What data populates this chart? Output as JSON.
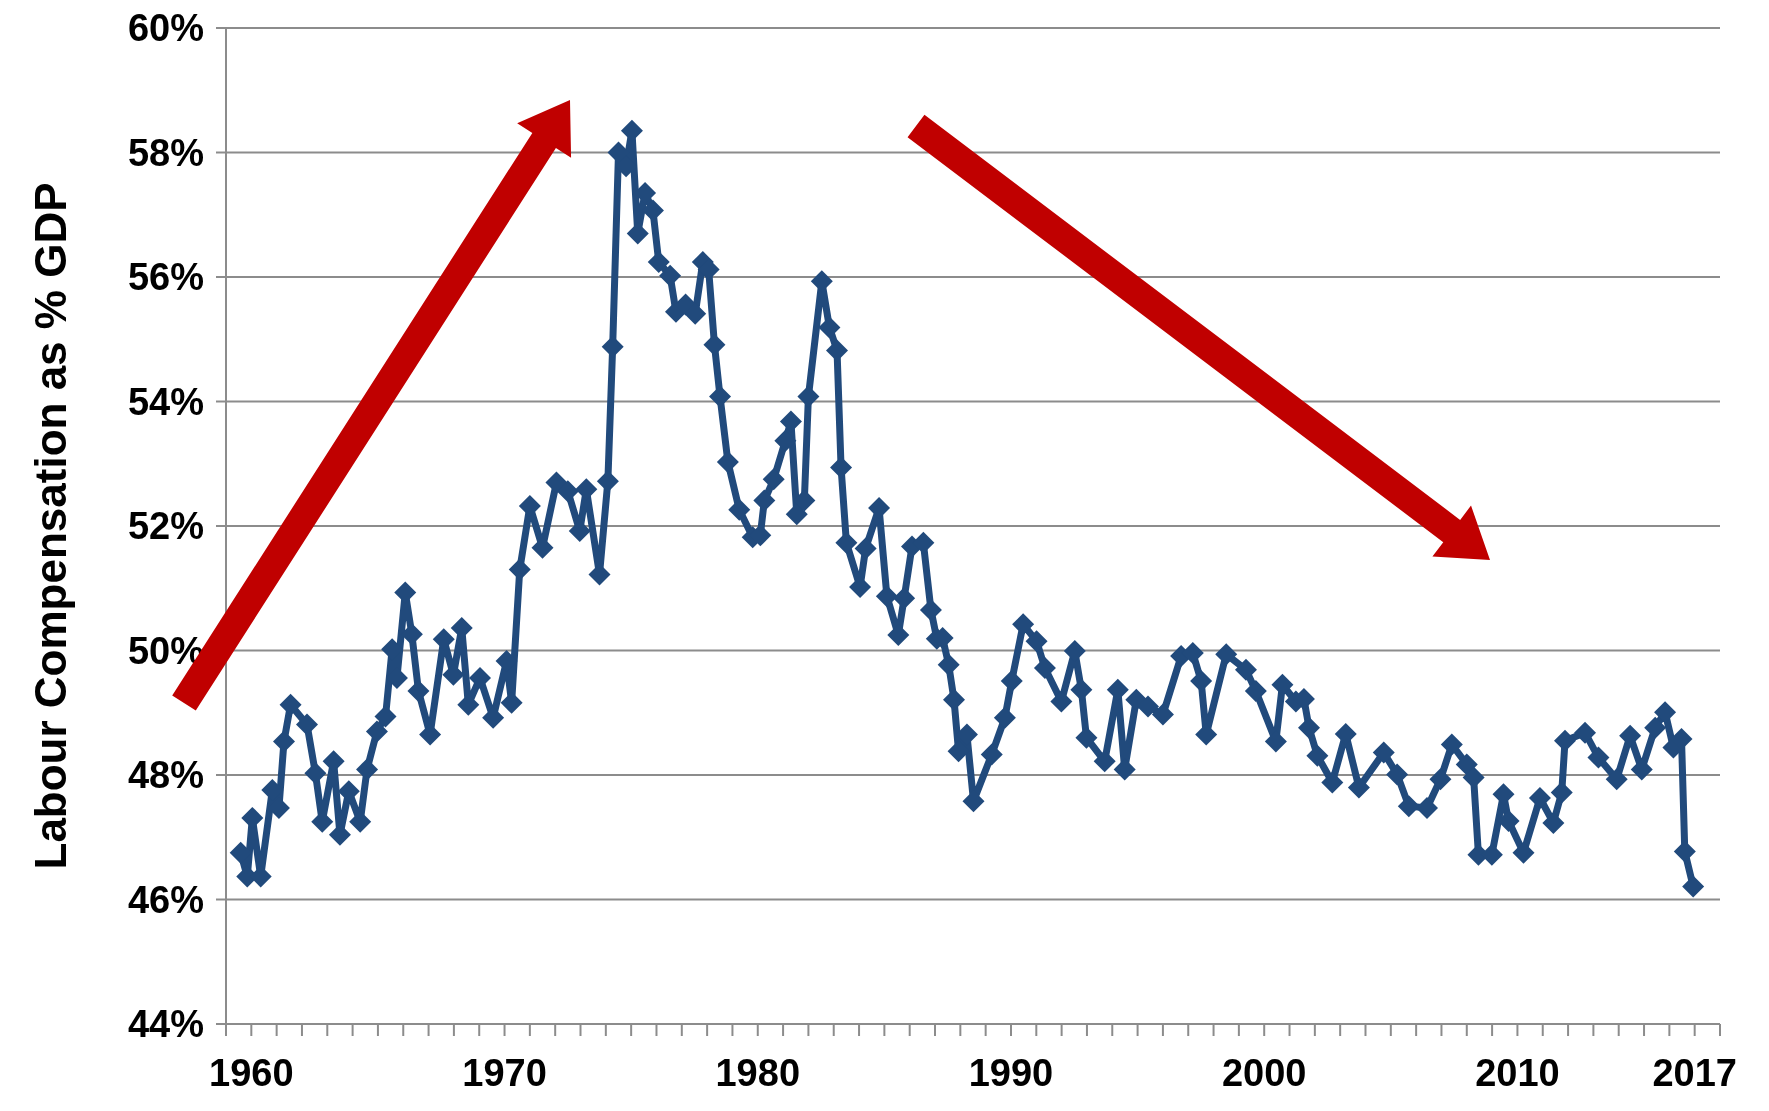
{
  "chart_data": {
    "type": "line",
    "ylabel": "Labour Compensation as % GDP",
    "xlim": [
      1959,
      2018
    ],
    "xticks": [
      {
        "value": 1959,
        "label": null
      },
      {
        "value": 1960,
        "label": "1960"
      },
      {
        "value": 1961,
        "label": null
      },
      {
        "value": 1962,
        "label": null
      },
      {
        "value": 1963,
        "label": null
      },
      {
        "value": 1964,
        "label": null
      },
      {
        "value": 1965,
        "label": null
      },
      {
        "value": 1966,
        "label": null
      },
      {
        "value": 1967,
        "label": null
      },
      {
        "value": 1968,
        "label": null
      },
      {
        "value": 1969,
        "label": null
      },
      {
        "value": 1970,
        "label": "1970"
      },
      {
        "value": 1971,
        "label": null
      },
      {
        "value": 1972,
        "label": null
      },
      {
        "value": 1973,
        "label": null
      },
      {
        "value": 1974,
        "label": null
      },
      {
        "value": 1975,
        "label": null
      },
      {
        "value": 1976,
        "label": null
      },
      {
        "value": 1977,
        "label": null
      },
      {
        "value": 1978,
        "label": null
      },
      {
        "value": 1979,
        "label": null
      },
      {
        "value": 1980,
        "label": "1980"
      },
      {
        "value": 1981,
        "label": null
      },
      {
        "value": 1982,
        "label": null
      },
      {
        "value": 1983,
        "label": null
      },
      {
        "value": 1984,
        "label": null
      },
      {
        "value": 1985,
        "label": null
      },
      {
        "value": 1986,
        "label": null
      },
      {
        "value": 1987,
        "label": null
      },
      {
        "value": 1988,
        "label": null
      },
      {
        "value": 1989,
        "label": null
      },
      {
        "value": 1990,
        "label": "1990"
      },
      {
        "value": 1991,
        "label": null
      },
      {
        "value": 1992,
        "label": null
      },
      {
        "value": 1993,
        "label": null
      },
      {
        "value": 1994,
        "label": null
      },
      {
        "value": 1995,
        "label": null
      },
      {
        "value": 1996,
        "label": null
      },
      {
        "value": 1997,
        "label": null
      },
      {
        "value": 1998,
        "label": null
      },
      {
        "value": 1999,
        "label": null
      },
      {
        "value": 2000,
        "label": "2000"
      },
      {
        "value": 2001,
        "label": null
      },
      {
        "value": 2002,
        "label": null
      },
      {
        "value": 2003,
        "label": null
      },
      {
        "value": 2004,
        "label": null
      },
      {
        "value": 2005,
        "label": null
      },
      {
        "value": 2006,
        "label": null
      },
      {
        "value": 2007,
        "label": null
      },
      {
        "value": 2008,
        "label": null
      },
      {
        "value": 2009,
        "label": null
      },
      {
        "value": 2010,
        "label": "2010"
      },
      {
        "value": 2011,
        "label": null
      },
      {
        "value": 2012,
        "label": null
      },
      {
        "value": 2013,
        "label": null
      },
      {
        "value": 2014,
        "label": null
      },
      {
        "value": 2015,
        "label": null
      },
      {
        "value": 2016,
        "label": null
      },
      {
        "value": 2017,
        "label": "2017"
      },
      {
        "value": 2018,
        "label": null
      }
    ],
    "ylim": [
      44,
      60
    ],
    "yticks": [
      {
        "value": 44,
        "label": "44%"
      },
      {
        "value": 46,
        "label": "46%"
      },
      {
        "value": 48,
        "label": "48%"
      },
      {
        "value": 50,
        "label": "50%"
      },
      {
        "value": 52,
        "label": "52%"
      },
      {
        "value": 54,
        "label": "54%"
      },
      {
        "value": 56,
        "label": "56%"
      },
      {
        "value": 58,
        "label": "58%"
      },
      {
        "value": 60,
        "label": "60%"
      }
    ],
    "grid": "y",
    "marker": "diamond",
    "line_style": "solid",
    "series": [
      {
        "color": "#214a7c",
        "x": [
          1959.58,
          1959.84,
          1960.04,
          1960.37,
          1960.83,
          1961.09,
          1961.29,
          1961.55,
          1962.2,
          1962.53,
          1962.8,
          1963.25,
          1963.5,
          1963.85,
          1964.3,
          1964.57,
          1964.96,
          1965.3,
          1965.56,
          1965.75,
          1966.08,
          1966.34,
          1966.6,
          1967.06,
          1967.6,
          1967.98,
          1968.31,
          1968.57,
          1969.03,
          1969.55,
          1970.08,
          1970.28,
          1970.6,
          1971.0,
          1971.5,
          1972.05,
          1972.5,
          1972.97,
          1973.23,
          1973.75,
          1974.08,
          1974.27,
          1974.5,
          1974.8,
          1975.03,
          1975.26,
          1975.55,
          1975.86,
          1976.09,
          1976.54,
          1976.77,
          1977.15,
          1977.53,
          1977.83,
          1978.06,
          1978.29,
          1978.51,
          1978.82,
          1979.27,
          1979.8,
          1980.1,
          1980.26,
          1980.63,
          1981.09,
          1981.31,
          1981.54,
          1981.84,
          1982.0,
          1982.53,
          1982.83,
          1983.13,
          1983.29,
          1983.5,
          1984.04,
          1984.26,
          1984.79,
          1985.1,
          1985.55,
          1985.78,
          1986.09,
          1986.54,
          1986.84,
          1987.07,
          1987.3,
          1987.54,
          1987.75,
          1987.93,
          1988.26,
          1988.52,
          1989.24,
          1989.76,
          1990.03,
          1990.48,
          1991.01,
          1991.34,
          1991.99,
          1992.52,
          1992.78,
          1992.98,
          1993.7,
          1994.22,
          1994.49,
          1994.95,
          1995.41,
          1996.0,
          1996.72,
          1997.18,
          1997.51,
          1997.71,
          1998.5,
          1999.28,
          1999.67,
          2000.46,
          2000.72,
          2001.25,
          2001.57,
          2001.77,
          2002.1,
          2002.69,
          2003.22,
          2003.74,
          2004.72,
          2005.25,
          2005.71,
          2006.43,
          2006.96,
          2007.41,
          2008.0,
          2008.27,
          2008.46,
          2008.99,
          2009.45,
          2009.65,
          2010.24,
          2010.89,
          2011.42,
          2011.75,
          2011.88,
          2012.67,
          2013.2,
          2013.92,
          2014.45,
          2014.91,
          2015.44,
          2015.83,
          2016.16,
          2016.48,
          2016.61,
          2016.94
        ],
        "values": [
          46.75,
          46.37,
          47.31,
          46.37,
          47.76,
          47.47,
          48.54,
          49.13,
          48.81,
          48.03,
          47.25,
          48.22,
          47.04,
          47.74,
          47.25,
          48.09,
          48.7,
          48.94,
          50.02,
          49.56,
          50.93,
          50.26,
          49.35,
          48.65,
          50.18,
          49.61,
          50.36,
          49.13,
          49.56,
          48.92,
          49.83,
          49.16,
          51.3,
          52.32,
          51.65,
          52.7,
          52.56,
          51.92,
          52.59,
          51.22,
          52.72,
          54.88,
          58.0,
          57.78,
          58.35,
          56.7,
          57.35,
          57.07,
          56.24,
          56.02,
          55.44,
          55.56,
          55.41,
          56.24,
          56.12,
          54.91,
          54.08,
          53.03,
          52.26,
          51.82,
          51.85,
          52.41,
          52.75,
          53.37,
          53.68,
          52.19,
          52.41,
          54.08,
          55.93,
          55.19,
          54.82,
          52.94,
          51.73,
          51.02,
          51.64,
          52.29,
          50.87,
          50.25,
          50.84,
          51.67,
          51.73,
          50.65,
          50.19,
          50.2,
          49.77,
          49.21,
          48.38,
          48.65,
          47.58,
          48.33,
          48.92,
          49.51,
          50.42,
          50.15,
          49.72,
          49.18,
          49.99,
          49.37,
          48.6,
          48.22,
          49.37,
          48.09,
          49.21,
          49.1,
          48.97,
          49.91,
          49.96,
          49.51,
          48.65,
          49.94,
          49.69,
          49.35,
          48.54,
          49.45,
          49.18,
          49.22,
          48.76,
          48.31,
          47.88,
          48.66,
          47.8,
          48.36,
          48.01,
          47.5,
          47.47,
          47.93,
          48.49,
          48.17,
          47.96,
          46.72,
          46.72,
          47.69,
          47.26,
          46.75,
          47.63,
          47.23,
          47.72,
          48.55,
          48.68,
          48.28,
          47.93,
          48.63,
          48.09,
          48.76,
          49.01,
          48.44,
          48.58,
          46.77,
          46.21
        ]
      }
    ]
  }
}
